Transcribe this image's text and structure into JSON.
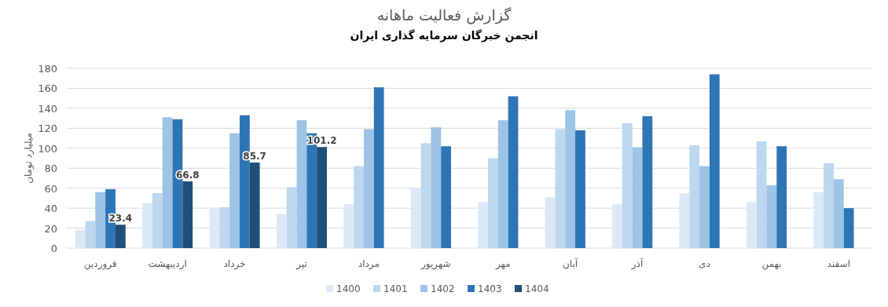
{
  "chart_data": {
    "type": "bar",
    "title": "گزارش فعالیت ماهانه",
    "subtitle": "انجمن خبرگان سرمایه گذاری ایران",
    "ylabel": "میلیارد تومان",
    "categories": [
      "فروردین",
      "اردیبهشت",
      "خرداد",
      "تیر",
      "مرداد",
      "شهریور",
      "مهر",
      "آبان",
      "آذر",
      "دی",
      "بهمن",
      "اسفند"
    ],
    "series": [
      {
        "name": "1400",
        "color": "#dde8f6",
        "values": [
          18,
          45,
          40,
          34,
          44,
          60,
          46,
          51,
          44,
          55,
          46,
          56
        ]
      },
      {
        "name": "1401",
        "color": "#bdd7ee",
        "values": [
          27,
          55,
          41,
          61,
          82,
          105,
          90,
          119,
          125,
          103,
          107,
          85
        ]
      },
      {
        "name": "1402",
        "color": "#9dc3e6",
        "values": [
          56,
          131,
          115,
          128,
          119,
          121,
          128,
          138,
          101,
          82,
          63,
          69
        ]
      },
      {
        "name": "1403",
        "color": "#2e75b6",
        "values": [
          59,
          129,
          133,
          115,
          161,
          102,
          152,
          118,
          132,
          174,
          102,
          40
        ]
      },
      {
        "name": "1404",
        "color": "#1f4e79",
        "values": [
          23.4,
          66.8,
          85.7,
          101.2,
          null,
          null,
          null,
          null,
          null,
          null,
          null,
          null
        ],
        "value_labels": [
          "23.4",
          "66.8",
          "85.7",
          "101.2",
          null,
          null,
          null,
          null,
          null,
          null,
          null,
          null
        ]
      }
    ],
    "ylim": [
      0,
      180
    ],
    "yticks": [
      0,
      20,
      40,
      60,
      80,
      100,
      120,
      140,
      160,
      180
    ],
    "grid": "y",
    "legend": "bottom"
  }
}
